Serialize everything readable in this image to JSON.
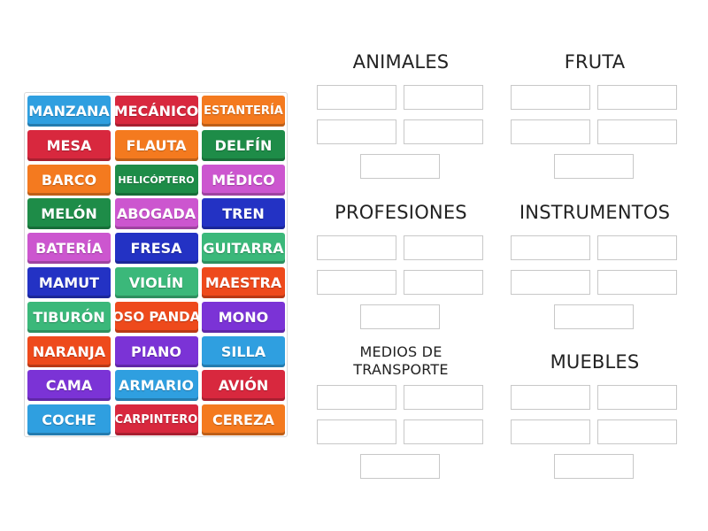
{
  "tiles": [
    {
      "label": "MANZANA",
      "color": "#2f9fe0"
    },
    {
      "label": "MECÁNICO",
      "color": "#d8283e"
    },
    {
      "label": "ESTANTERÍA",
      "color": "#f47a1f"
    },
    {
      "label": "MESA",
      "color": "#d8283e"
    },
    {
      "label": "FLAUTA",
      "color": "#f47a1f"
    },
    {
      "label": "DELFÍN",
      "color": "#1e8c48"
    },
    {
      "label": "BARCO",
      "color": "#f47a1f"
    },
    {
      "label": "HELICÓPTERO",
      "color": "#1e8c48"
    },
    {
      "label": "MÉDICO",
      "color": "#cc56cf"
    },
    {
      "label": "MELÓN",
      "color": "#1e8c48"
    },
    {
      "label": "ABOGADA",
      "color": "#cc56cf"
    },
    {
      "label": "TREN",
      "color": "#2332c4"
    },
    {
      "label": "BATERÍA",
      "color": "#cc56cf"
    },
    {
      "label": "FRESA",
      "color": "#2332c4"
    },
    {
      "label": "GUITARRA",
      "color": "#3bb87a"
    },
    {
      "label": "MAMUT",
      "color": "#2332c4"
    },
    {
      "label": "VIOLÍN",
      "color": "#3bb87a"
    },
    {
      "label": "MAESTRA",
      "color": "#ee4a1c"
    },
    {
      "label": "TIBURÓN",
      "color": "#3bb87a"
    },
    {
      "label": "OSO PANDA",
      "color": "#ee4a1c"
    },
    {
      "label": "MONO",
      "color": "#7b33d6"
    },
    {
      "label": "NARANJA",
      "color": "#ee4a1c"
    },
    {
      "label": "PIANO",
      "color": "#7b33d6"
    },
    {
      "label": "SILLA",
      "color": "#2f9fe0"
    },
    {
      "label": "CAMA",
      "color": "#7b33d6"
    },
    {
      "label": "ARMARIO",
      "color": "#2f9fe0"
    },
    {
      "label": "AVIÓN",
      "color": "#d8283e"
    },
    {
      "label": "COCHE",
      "color": "#2f9fe0"
    },
    {
      "label": "CARPINTERO",
      "color": "#d8283e"
    },
    {
      "label": "CEREZA",
      "color": "#f47a1f"
    }
  ],
  "groups": [
    {
      "title": "ANIMALES"
    },
    {
      "title": "FRUTA"
    },
    {
      "title": "PROFESIONES"
    },
    {
      "title": "INSTRUMENTOS"
    },
    {
      "title": "MEDIOS DE TRANSPORTE"
    },
    {
      "title": "MUEBLES"
    }
  ]
}
